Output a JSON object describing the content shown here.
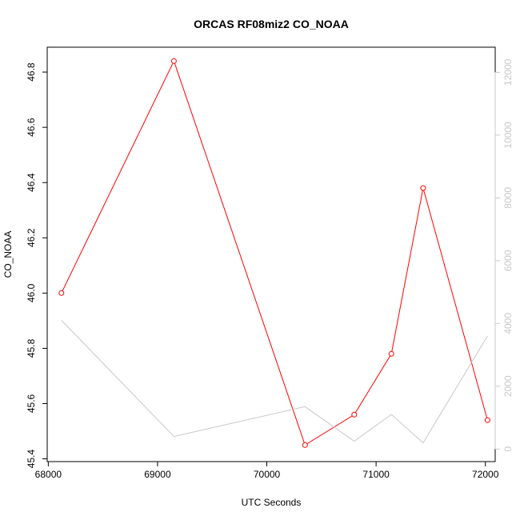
{
  "chart_data": {
    "type": "line",
    "title": "ORCAS RF08miz2 CO_NOAA",
    "xlabel": "UTC Seconds",
    "ylabel": "CO_NOAA",
    "xlim": [
      67990,
      72090
    ],
    "ylim": [
      45.39,
      46.89
    ],
    "y2lim": [
      -400,
      12800
    ],
    "x_ticks": [
      68000,
      69000,
      70000,
      71000,
      72000
    ],
    "y_ticks": [
      45.4,
      45.6,
      45.8,
      46.0,
      46.2,
      46.4,
      46.6,
      46.8
    ],
    "y2_ticks": [
      0,
      2000,
      4000,
      6000,
      8000,
      10000,
      12000
    ],
    "grid": false,
    "colors": {
      "primary": "#ff0000",
      "secondary": "#c8c8c8",
      "axis": "#000000"
    },
    "series": [
      {
        "axis": "left",
        "style": "line+points",
        "x": [
          68120,
          69150,
          70350,
          70800,
          71140,
          71430,
          72020
        ],
        "y": [
          46.0,
          46.84,
          45.45,
          45.56,
          45.78,
          46.38,
          45.54
        ]
      },
      {
        "axis": "right",
        "style": "line",
        "x": [
          68120,
          69150,
          70350,
          70800,
          71140,
          71430,
          72020
        ],
        "y": [
          4100,
          400,
          1350,
          250,
          1100,
          200,
          3600
        ]
      }
    ]
  }
}
